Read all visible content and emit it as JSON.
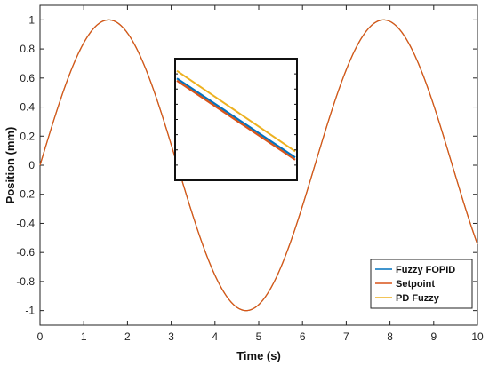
{
  "chart_data": {
    "type": "line",
    "xlabel": "Time (s)",
    "ylabel": "Position (mm)",
    "xlim": [
      0,
      10
    ],
    "ylim": [
      -1.1,
      1.1
    ],
    "xticks": [
      0,
      1,
      2,
      3,
      4,
      5,
      6,
      7,
      8,
      9,
      10
    ],
    "yticks": [
      -1,
      -0.8,
      -0.6,
      -0.4,
      -0.2,
      0,
      0.2,
      0.4,
      0.6,
      0.8,
      1
    ],
    "xtick_labels": [
      "0",
      "1",
      "2",
      "3",
      "4",
      "5",
      "6",
      "7",
      "8",
      "9",
      "10"
    ],
    "ytick_labels": [
      "-1",
      "-0.8",
      "-0.6",
      "-0.4",
      "-0.2",
      "0",
      "0.2",
      "0.4",
      "0.6",
      "0.8",
      "1"
    ],
    "grid": false,
    "legend_position": "bottom-right",
    "series": [
      {
        "name": "Fuzzy FOPID",
        "color": "#0072BD",
        "x": [
          0,
          0.5,
          1,
          1.5,
          2,
          2.5,
          3,
          3.5,
          4,
          4.5,
          5,
          5.5,
          6,
          6.5,
          7,
          7.5,
          8,
          8.5,
          9,
          9.5,
          10
        ],
        "y": [
          0,
          0.479,
          0.841,
          0.997,
          0.909,
          0.598,
          0.141,
          -0.351,
          -0.757,
          -0.978,
          -0.959,
          -0.706,
          -0.279,
          0.215,
          0.657,
          0.938,
          0.989,
          0.798,
          0.412,
          -0.075,
          -0.544
        ]
      },
      {
        "name": "Setpoint",
        "color": "#D95319",
        "x": [
          0,
          0.5,
          1,
          1.5,
          2,
          2.5,
          3,
          3.5,
          4,
          4.5,
          5,
          5.5,
          6,
          6.5,
          7,
          7.5,
          8,
          8.5,
          9,
          9.5,
          10
        ],
        "y": [
          0,
          0.479,
          0.841,
          0.997,
          0.909,
          0.598,
          0.141,
          -0.351,
          -0.757,
          -0.978,
          -0.959,
          -0.706,
          -0.279,
          0.215,
          0.657,
          0.938,
          0.989,
          0.798,
          0.412,
          -0.075,
          -0.544
        ]
      },
      {
        "name": "PD Fuzzy",
        "color": "#EDB120",
        "x": [
          0,
          0.5,
          1,
          1.5,
          2,
          2.5,
          3,
          3.5,
          4,
          4.5,
          5,
          5.5,
          6,
          6.5,
          7,
          7.5,
          8,
          8.5,
          9,
          9.5,
          10
        ],
        "y": [
          0,
          0.479,
          0.841,
          0.997,
          0.909,
          0.598,
          0.141,
          -0.351,
          -0.757,
          -0.978,
          -0.959,
          -0.706,
          -0.279,
          0.215,
          0.657,
          0.938,
          0.989,
          0.798,
          0.412,
          -0.075,
          -0.544
        ]
      }
    ],
    "inset": {
      "series": [
        {
          "name": "Fuzzy FOPID",
          "y_start": 0.57,
          "y_end": 0.05
        },
        {
          "name": "Setpoint",
          "y_start": 0.555,
          "y_end": 0.035
        },
        {
          "name": "PD Fuzzy",
          "y_start": 0.62,
          "y_end": 0.09
        }
      ]
    }
  }
}
